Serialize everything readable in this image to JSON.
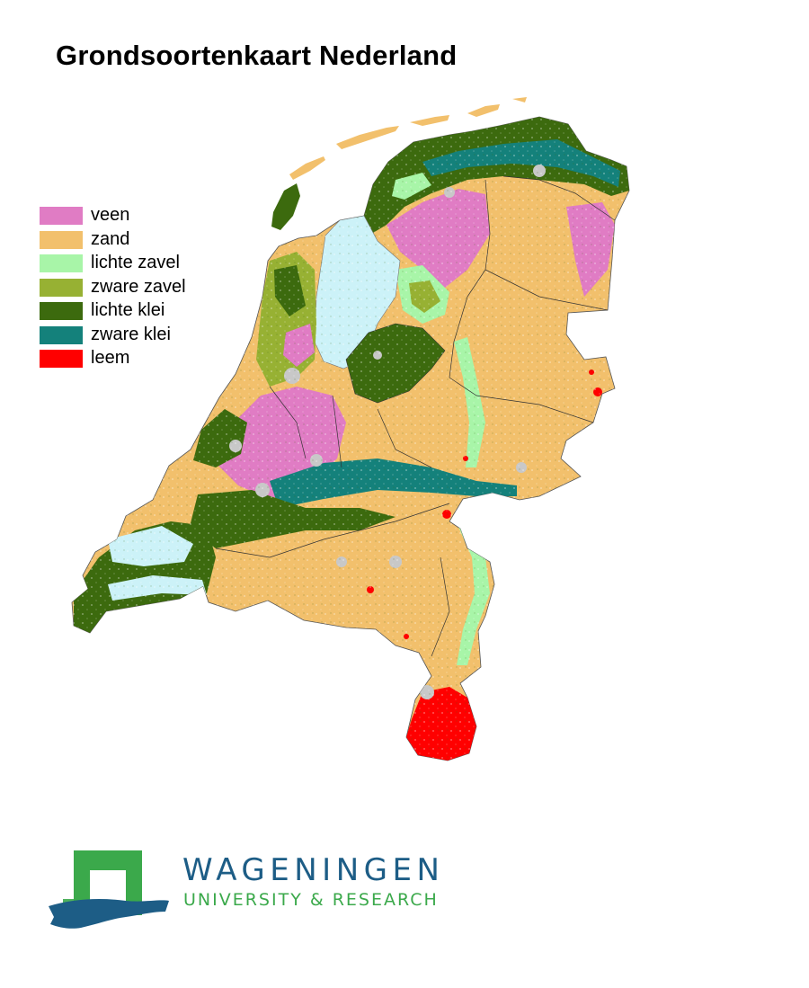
{
  "title": "Grondsoortenkaart Nederland",
  "legend": [
    {
      "label": "veen",
      "color": "#e07cc4"
    },
    {
      "label": "zand",
      "color": "#f2c06c"
    },
    {
      "label": "lichte zavel",
      "color": "#a8f5a8"
    },
    {
      "label": "zware zavel",
      "color": "#97b133"
    },
    {
      "label": "lichte klei",
      "color": "#3c6a0e"
    },
    {
      "label": "zware klei",
      "color": "#14817b"
    },
    {
      "label": "leem",
      "color": "#ff0000"
    }
  ],
  "water_color": "#ccf2f8",
  "urban_color": "#c8c8c8",
  "logo": {
    "name": "WAGENINGEN",
    "subtitle": "UNIVERSITY & RESEARCH",
    "primary_color": "#1d5d86",
    "secondary_color": "#3ba94b"
  }
}
